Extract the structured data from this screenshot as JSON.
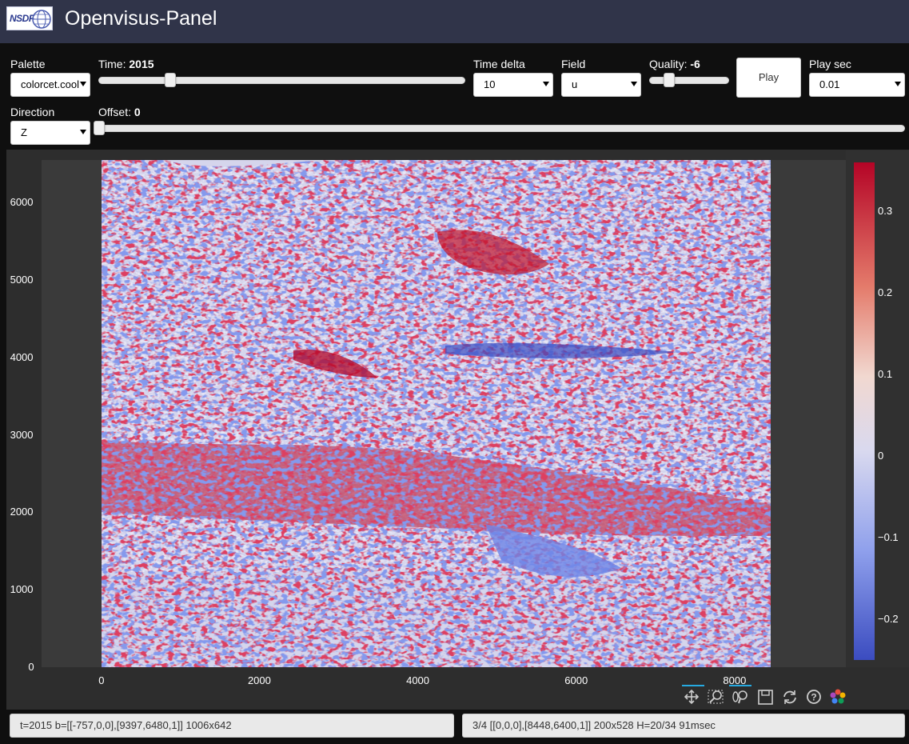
{
  "app": {
    "title": "Openvisus-Panel",
    "logo_text": "NSDF"
  },
  "controls": {
    "palette": {
      "label": "Palette",
      "value": "colorcet.cool"
    },
    "time": {
      "label": "Time:",
      "value": "2015",
      "fraction": 0.2
    },
    "time_delta": {
      "label": "Time delta",
      "value": "10"
    },
    "field": {
      "label": "Field",
      "value": "u"
    },
    "quality": {
      "label": "Quality:",
      "value": "-6",
      "fraction": 0.25
    },
    "play_button": "Play",
    "play_sec": {
      "label": "Play sec",
      "value": "0.01"
    },
    "direction": {
      "label": "Direction",
      "value": "Z"
    },
    "offset": {
      "label": "Offset:",
      "value": "0",
      "fraction": 0.0
    }
  },
  "plot": {
    "x_ticks": [
      "0",
      "2000",
      "4000",
      "6000",
      "8000"
    ],
    "y_ticks": [
      "0",
      "1000",
      "2000",
      "3000",
      "4000",
      "5000",
      "6000"
    ],
    "colorbar_ticks": [
      "0.3",
      "0.2",
      "0.1",
      "0",
      "−0.1",
      "−0.2"
    ],
    "toolbar": [
      "pan-icon",
      "box-zoom-icon",
      "wheel-zoom-icon",
      "save-icon",
      "reset-icon",
      "help-icon",
      "bokeh-logo-icon"
    ]
  },
  "colors": {
    "header_bg": "#303449",
    "colormap_low": "#3b4cc0",
    "colormap_mid": "#dcdcee",
    "colormap_high": "#b40426"
  },
  "chart_data": {
    "type": "heatmap",
    "title": "",
    "xlabel": "",
    "ylabel": "",
    "xlim": [
      -757,
      9397
    ],
    "ylim": [
      0,
      6480
    ],
    "x_ticks": [
      0,
      2000,
      4000,
      6000,
      8000
    ],
    "y_ticks": [
      0,
      1000,
      2000,
      3000,
      4000,
      5000,
      6000
    ],
    "colorbar": {
      "min": -0.25,
      "max": 0.36,
      "ticks": [
        -0.2,
        -0.1,
        0,
        0.1,
        0.2,
        0.3
      ]
    },
    "data_extent": {
      "x": [
        0,
        8448
      ],
      "y": [
        0,
        6400
      ]
    }
  },
  "status": {
    "left": "t=2015 b=[[-757,0,0],[9397,6480,1]] 1006x642",
    "right": "3/4 [[0,0,0],[8448,6400,1]] 200x528 H=20/34 91msec"
  }
}
